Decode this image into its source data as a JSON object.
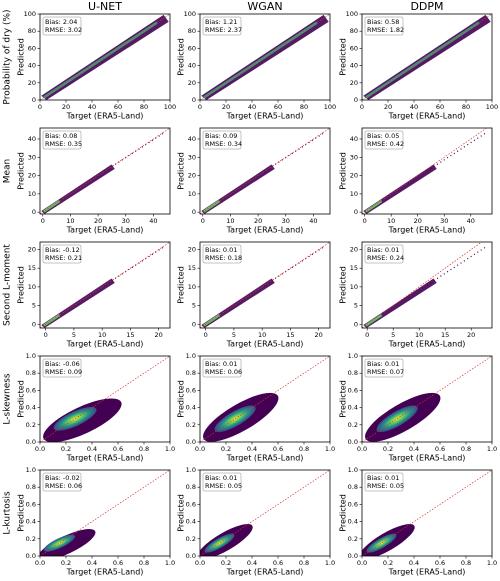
{
  "chart_data": [
    {
      "type": "scatter",
      "title": "U-NET",
      "row_label": "Probability of dry (%)",
      "ylabel": "Predicted",
      "xlabel": "Target (ERA5-Land)",
      "annotation": [
        "Bias: 2.04",
        "RMSE: 3.02"
      ],
      "xlim": [
        0,
        100
      ],
      "ylim": [
        0,
        100
      ],
      "xticks": [
        0,
        20,
        40,
        60,
        80,
        100
      ],
      "yticks": [
        0,
        20,
        40,
        60,
        80,
        100
      ]
    },
    {
      "type": "scatter",
      "title": "WGAN",
      "ylabel": "Predicted",
      "xlabel": "Target (ERA5-Land)",
      "annotation": [
        "Bias: 1.21",
        "RMSE: 2.37"
      ],
      "xlim": [
        0,
        100
      ],
      "ylim": [
        0,
        100
      ],
      "xticks": [
        0,
        20,
        40,
        60,
        80,
        100
      ],
      "yticks": [
        0,
        20,
        40,
        60,
        80,
        100
      ]
    },
    {
      "type": "scatter",
      "title": "DDPM",
      "ylabel": "Predicted",
      "xlabel": "Target (ERA5-Land)",
      "annotation": [
        "Bias: 0.58",
        "RMSE: 1.82"
      ],
      "xlim": [
        0,
        100
      ],
      "ylim": [
        0,
        100
      ],
      "xticks": [
        0,
        20,
        40,
        60,
        80,
        100
      ],
      "yticks": [
        0,
        20,
        40,
        60,
        80,
        100
      ]
    },
    {
      "type": "scatter",
      "row_label": "Mean",
      "ylabel": "Predicted",
      "xlabel": "Target (ERA5-Land)",
      "annotation": [
        "Bias: 0.08",
        "RMSE: 0.35"
      ],
      "xlim": [
        -1,
        46
      ],
      "ylim": [
        -1,
        46
      ],
      "xticks": [
        0,
        10,
        20,
        30,
        40
      ],
      "yticks": [
        0,
        10,
        20,
        30,
        40
      ]
    },
    {
      "type": "scatter",
      "ylabel": "Predicted",
      "xlabel": "Target (ERA5-Land)",
      "annotation": [
        "Bias: 0.09",
        "RMSE: 0.34"
      ],
      "xlim": [
        -1,
        46
      ],
      "ylim": [
        -1,
        46
      ],
      "xticks": [
        0,
        10,
        20,
        30,
        40
      ],
      "yticks": [
        0,
        10,
        20,
        30,
        40
      ]
    },
    {
      "type": "scatter",
      "ylabel": "Predicted",
      "xlabel": "Target (ERA5-Land)",
      "annotation": [
        "Bias: 0.05",
        "RMSE: 0.42"
      ],
      "xlim": [
        -1,
        48
      ],
      "ylim": [
        -1,
        46
      ],
      "xticks": [
        0,
        10,
        20,
        30,
        40
      ],
      "yticks": [
        0,
        10,
        20,
        30,
        40
      ]
    },
    {
      "type": "scatter",
      "row_label": "Second L-moment",
      "ylabel": "Predicted",
      "xlabel": "Target (ERA5-Land)",
      "annotation": [
        "Bias: -0.12",
        "RMSE: 0.21"
      ],
      "xlim": [
        -1,
        22
      ],
      "ylim": [
        -1,
        22
      ],
      "xticks": [
        0,
        5,
        10,
        15,
        20
      ],
      "yticks": [
        0,
        5,
        10,
        15,
        20
      ]
    },
    {
      "type": "scatter",
      "ylabel": "Predicted",
      "xlabel": "Target (ERA5-Land)",
      "annotation": [
        "Bias: 0.01",
        "RMSE: 0.18"
      ],
      "xlim": [
        -1,
        22
      ],
      "ylim": [
        -1,
        22
      ],
      "xticks": [
        0,
        5,
        10,
        15,
        20
      ],
      "yticks": [
        0,
        5,
        10,
        15,
        20
      ]
    },
    {
      "type": "scatter",
      "ylabel": "Predicted",
      "xlabel": "Target (ERA5-Land)",
      "annotation": [
        "Bias: 0.01",
        "RMSE: 0.24"
      ],
      "xlim": [
        -1,
        24
      ],
      "ylim": [
        -1,
        22
      ],
      "xticks": [
        0,
        5,
        10,
        15,
        20
      ],
      "yticks": [
        0,
        5,
        10,
        15,
        20
      ]
    },
    {
      "type": "scatter",
      "row_label": "L-skewness",
      "ylabel": "Predicted",
      "xlabel": "Target (ERA5-Land)",
      "annotation": [
        "Bias: -0.06",
        "RMSE: 0.09"
      ],
      "xlim": [
        0,
        1
      ],
      "ylim": [
        0,
        1
      ],
      "xticks": [
        {
          "value": 0,
          "label": "0.0"
        },
        0.2,
        0.4,
        0.6,
        0.8,
        {
          "value": 1,
          "label": "1.0"
        }
      ],
      "yticks": [
        {
          "value": 0,
          "label": "0.0"
        },
        0.2,
        0.4,
        0.6,
        0.8,
        {
          "value": 1,
          "label": "1.0"
        }
      ]
    },
    {
      "type": "scatter",
      "ylabel": "Predicted",
      "xlabel": "Target (ERA5-Land)",
      "annotation": [
        "Bias: 0.01",
        "RMSE: 0.06"
      ],
      "xlim": [
        0,
        1
      ],
      "ylim": [
        0,
        1
      ],
      "xticks": [
        {
          "value": 0,
          "label": "0.0"
        },
        0.2,
        0.4,
        0.6,
        0.8,
        {
          "value": 1,
          "label": "1.0"
        }
      ],
      "yticks": [
        {
          "value": 0,
          "label": "0.0"
        },
        0.2,
        0.4,
        0.6,
        0.8,
        {
          "value": 1,
          "label": "1.0"
        }
      ]
    },
    {
      "type": "scatter",
      "ylabel": "Predicted",
      "xlabel": "Target (ERA5-Land)",
      "annotation": [
        "Bias: 0.01",
        "RMSE: 0.07"
      ],
      "xlim": [
        0,
        1
      ],
      "ylim": [
        0,
        1
      ],
      "xticks": [
        {
          "value": 0,
          "label": "0.0"
        },
        0.2,
        0.4,
        0.6,
        0.8,
        {
          "value": 1,
          "label": "1.0"
        }
      ],
      "yticks": [
        {
          "value": 0,
          "label": "0.0"
        },
        0.2,
        0.4,
        0.6,
        0.8,
        {
          "value": 1,
          "label": "1.0"
        }
      ]
    },
    {
      "type": "scatter",
      "row_label": "L-kurtosis",
      "ylabel": "Predicted",
      "xlabel": "Target (ERA5-Land)",
      "annotation": [
        "Bias: -0.02",
        "RMSE: 0.06"
      ],
      "xlim": [
        0,
        1
      ],
      "ylim": [
        0,
        1
      ],
      "xticks": [
        {
          "value": 0,
          "label": "0.0"
        },
        0.2,
        0.4,
        0.6,
        0.8,
        {
          "value": 1,
          "label": "1.0"
        }
      ],
      "yticks": [
        {
          "value": 0,
          "label": "0.0"
        },
        0.2,
        0.4,
        0.6,
        0.8,
        {
          "value": 1,
          "label": "1.0"
        }
      ]
    },
    {
      "type": "scatter",
      "ylabel": "Predicted",
      "xlabel": "Target (ERA5-Land)",
      "annotation": [
        "Bias: 0.01",
        "RMSE: 0.05"
      ],
      "xlim": [
        0,
        1
      ],
      "ylim": [
        0,
        1
      ],
      "xticks": [
        {
          "value": 0,
          "label": "0.0"
        },
        0.2,
        0.4,
        0.6,
        0.8,
        {
          "value": 1,
          "label": "1.0"
        }
      ],
      "yticks": [
        {
          "value": 0,
          "label": "0.0"
        },
        0.2,
        0.4,
        0.6,
        0.8,
        {
          "value": 1,
          "label": "1.0"
        }
      ]
    },
    {
      "type": "scatter",
      "ylabel": "Predicted",
      "xlabel": "Target (ERA5-Land)",
      "annotation": [
        "Bias: 0.01",
        "RMSE: 0.05"
      ],
      "xlim": [
        0,
        1
      ],
      "ylim": [
        0,
        1
      ],
      "xticks": [
        {
          "value": 0,
          "label": "0.0"
        },
        0.2,
        0.4,
        0.6,
        0.8,
        {
          "value": 1,
          "label": "1.0"
        }
      ],
      "yticks": [
        {
          "value": 0,
          "label": "0.0"
        },
        0.2,
        0.4,
        0.6,
        0.8,
        {
          "value": 1,
          "label": "1.0"
        }
      ]
    }
  ]
}
